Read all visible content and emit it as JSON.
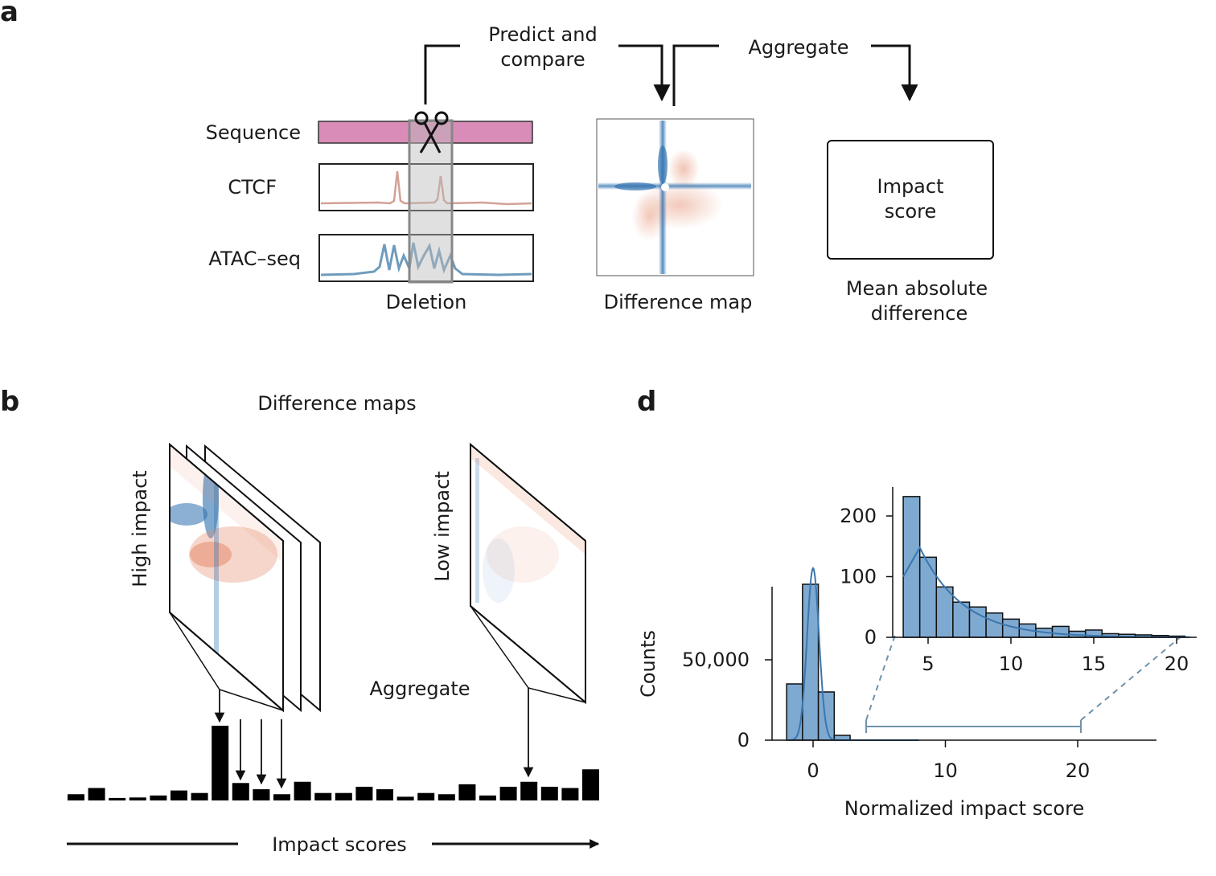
{
  "panels": {
    "a": {
      "label": "a",
      "step1": [
        "Predict and",
        "compare"
      ],
      "step2": "Aggregate",
      "tracks": [
        "Sequence",
        "CTCF",
        "ATAC–seq"
      ],
      "deletion_label": "Deletion",
      "difference_map_label": "Difference map",
      "impact_box": [
        "Impact",
        "score"
      ],
      "impact_caption": [
        "Mean absolute",
        "difference"
      ]
    },
    "b": {
      "label": "b",
      "title": "Difference maps",
      "high_label": "High impact",
      "low_label": "Low impact",
      "aggregate_label": "Aggregate",
      "axis_label": "Impact scores"
    },
    "d": {
      "label": "d"
    }
  },
  "colors": {
    "sequence": "#d98cb8",
    "ctcf": "#d4a196",
    "atac": "#6f9cbc",
    "hist_fill": "#7ea9d1",
    "kde": "#3b76ad",
    "map_blue": "#2c6fae",
    "map_red": "#e48a6a"
  },
  "chart_data": [
    {
      "type": "bar",
      "name": "impact-scores-bars",
      "values": [
        0.25,
        0.5,
        0.1,
        0.12,
        0.2,
        0.4,
        0.3,
        3.0,
        0.7,
        0.45,
        0.25,
        0.75,
        0.3,
        0.3,
        0.55,
        0.45,
        0.15,
        0.3,
        0.25,
        0.65,
        0.2,
        0.55,
        0.75,
        0.55,
        0.5,
        1.25
      ]
    },
    {
      "type": "bar",
      "name": "main-histogram",
      "xlabel": "Normalized impact score",
      "ylabel": "Counts",
      "xticks": [
        "0",
        "10",
        "20"
      ],
      "yticks": [
        "0",
        "50,000"
      ],
      "xlim": [
        -2.5,
        26
      ],
      "ylim": [
        0,
        110000
      ],
      "bins": [
        {
          "x0": -2,
          "x1": -0.8,
          "count": 35000
        },
        {
          "x0": -0.8,
          "x1": 0.4,
          "count": 97000
        },
        {
          "x0": 0.4,
          "x1": 1.6,
          "count": 30000
        },
        {
          "x0": 1.6,
          "x1": 2.8,
          "count": 3000
        }
      ],
      "kde_peak": {
        "x": 0,
        "y": 107000
      }
    },
    {
      "type": "bar",
      "name": "inset-histogram",
      "xticks": [
        "5",
        "10",
        "15",
        "20"
      ],
      "yticks": [
        "0",
        "100",
        "200"
      ],
      "xlim": [
        3.8,
        21.5
      ],
      "ylim": [
        0,
        250
      ],
      "bins": [
        {
          "x0": 4,
          "x1": 5,
          "count": 232
        },
        {
          "x0": 5,
          "x1": 6,
          "count": 132
        },
        {
          "x0": 6,
          "x1": 7,
          "count": 83
        },
        {
          "x0": 7,
          "x1": 8,
          "count": 58
        },
        {
          "x0": 8,
          "x1": 9,
          "count": 50
        },
        {
          "x0": 9,
          "x1": 10,
          "count": 40
        },
        {
          "x0": 10,
          "x1": 11,
          "count": 30
        },
        {
          "x0": 11,
          "x1": 12,
          "count": 22
        },
        {
          "x0": 12,
          "x1": 13,
          "count": 15
        },
        {
          "x0": 13,
          "x1": 14,
          "count": 18
        },
        {
          "x0": 14,
          "x1": 15,
          "count": 10
        },
        {
          "x0": 15,
          "x1": 16,
          "count": 12
        },
        {
          "x0": 16,
          "x1": 17,
          "count": 6
        },
        {
          "x0": 17,
          "x1": 18,
          "count": 5
        },
        {
          "x0": 18,
          "x1": 19,
          "count": 4
        },
        {
          "x0": 19,
          "x1": 20,
          "count": 3
        },
        {
          "x0": 20,
          "x1": 21,
          "count": 2
        }
      ]
    }
  ]
}
